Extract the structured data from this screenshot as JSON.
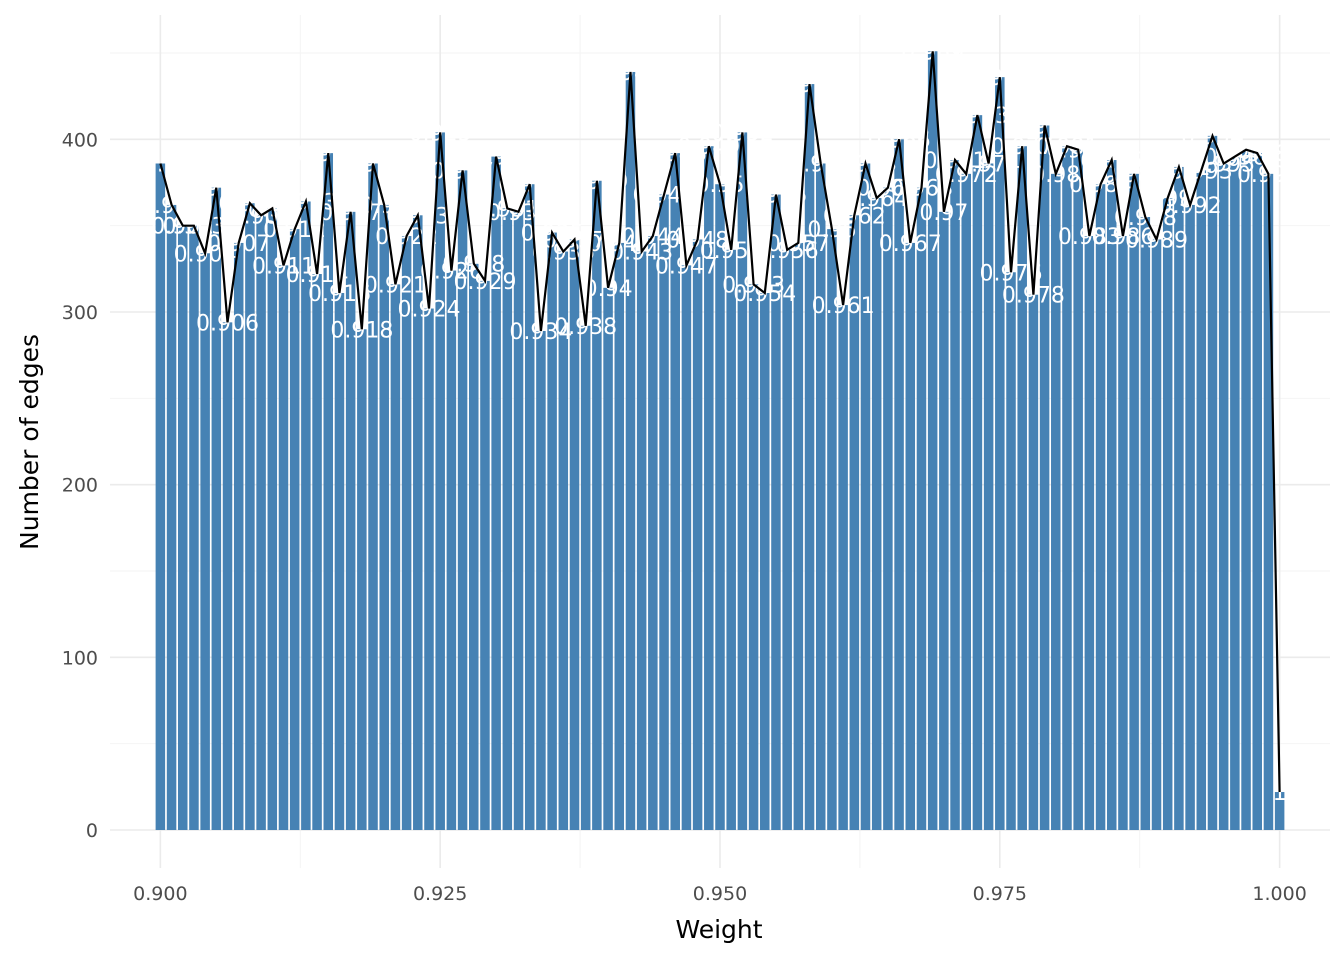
{
  "chart_data": {
    "type": "bar",
    "xlabel": "Weight",
    "ylabel": "Number of edges",
    "xlim": [
      0.8955,
      1.0045
    ],
    "ylim": [
      -22,
      472
    ],
    "x_ticks": [
      0.9,
      0.925,
      0.95,
      0.975,
      1.0
    ],
    "x_tick_labels": [
      "0.900",
      "0.925",
      "0.950",
      "0.975",
      "1.000"
    ],
    "y_ticks": [
      0,
      100,
      200,
      300,
      400
    ],
    "y_tick_labels": [
      "0",
      "100",
      "200",
      "300",
      "400"
    ],
    "bar_width": 0.00085,
    "bar_color": "#4682b4",
    "line_color": "#000000",
    "label_color": "#ffffff",
    "grid": true,
    "x": [
      0.9,
      0.901,
      0.902,
      0.903,
      0.904,
      0.905,
      0.906,
      0.907,
      0.908,
      0.909,
      0.91,
      0.911,
      0.912,
      0.913,
      0.914,
      0.915,
      0.916,
      0.917,
      0.918,
      0.919,
      0.92,
      0.921,
      0.922,
      0.923,
      0.924,
      0.925,
      0.926,
      0.927,
      0.928,
      0.929,
      0.93,
      0.931,
      0.932,
      0.933,
      0.934,
      0.935,
      0.936,
      0.937,
      0.938,
      0.939,
      0.94,
      0.941,
      0.942,
      0.943,
      0.944,
      0.945,
      0.946,
      0.947,
      0.948,
      0.949,
      0.95,
      0.951,
      0.952,
      0.953,
      0.954,
      0.955,
      0.956,
      0.957,
      0.958,
      0.959,
      0.96,
      0.961,
      0.962,
      0.963,
      0.964,
      0.965,
      0.966,
      0.967,
      0.968,
      0.969,
      0.97,
      0.971,
      0.972,
      0.973,
      0.974,
      0.975,
      0.976,
      0.977,
      0.978,
      0.979,
      0.98,
      0.981,
      0.982,
      0.983,
      0.984,
      0.985,
      0.986,
      0.987,
      0.988,
      0.989,
      0.99,
      0.991,
      0.992,
      0.993,
      0.994,
      0.995,
      0.996,
      0.997,
      0.998,
      0.999,
      1.0
    ],
    "values": [
      386,
      362,
      350,
      350,
      334,
      372,
      294,
      340,
      363,
      356,
      360,
      327,
      348,
      364,
      322,
      392,
      311,
      358,
      290,
      386,
      362,
      316,
      344,
      356,
      302,
      404,
      324,
      382,
      328,
      318,
      390,
      360,
      358,
      374,
      289,
      346,
      335,
      342,
      292,
      376,
      314,
      340,
      439,
      335,
      344,
      368,
      392,
      327,
      342,
      396,
      374,
      336,
      404,
      316,
      311,
      368,
      336,
      340,
      432,
      386,
      348,
      304,
      356,
      386,
      366,
      372,
      400,
      340,
      372,
      451,
      358,
      388,
      380,
      414,
      386,
      436,
      323,
      396,
      310,
      408,
      380,
      396,
      394,
      344,
      374,
      388,
      344,
      380,
      355,
      342,
      366,
      384,
      362,
      382,
      402,
      386,
      390,
      394,
      392,
      380,
      22
    ],
    "labels": [
      "0.9",
      "0.901",
      "0.902",
      "0.903",
      "0.904",
      "0.905",
      "0.906",
      "0.907",
      "0.908",
      "0.909",
      "0.91",
      "0.911",
      "0.912",
      "0.913",
      "0.914",
      "0.915",
      "0.916",
      "0.917",
      "0.918",
      "0.919",
      "0.92",
      "0.921",
      "0.922",
      "0.923",
      "0.924",
      "0.925",
      "0.926",
      "0.927",
      "0.928",
      "0.929",
      "0.93",
      "0.931",
      "0.932",
      "0.933",
      "0.934",
      "0.935",
      "0.936",
      "0.937",
      "0.938",
      "0.939",
      "0.94",
      "0.941",
      "0.942",
      "0.943",
      "0.944",
      "0.945",
      "0.946",
      "0.947",
      "0.948",
      "0.949",
      "0.95",
      "0.951",
      "0.952",
      "0.953",
      "0.954",
      "0.955",
      "0.956",
      "0.957",
      "0.958",
      "0.959",
      "0.96",
      "0.961",
      "0.962",
      "0.963",
      "0.964",
      "0.965",
      "0.966",
      "0.967",
      "0.968",
      "0.969",
      "0.97",
      "0.971",
      "0.972",
      "0.973",
      "0.974",
      "0.975",
      "0.976",
      "0.977",
      "0.978",
      "0.979",
      "0.98",
      "0.981",
      "0.982",
      "0.983",
      "0.984",
      "0.985",
      "0.986",
      "0.987",
      "0.988",
      "0.989",
      "0.99",
      "0.991",
      "0.992",
      "0.993",
      "0.994",
      "0.995",
      "0.996",
      "0.997",
      "0.998",
      "0.999",
      "1"
    ]
  }
}
